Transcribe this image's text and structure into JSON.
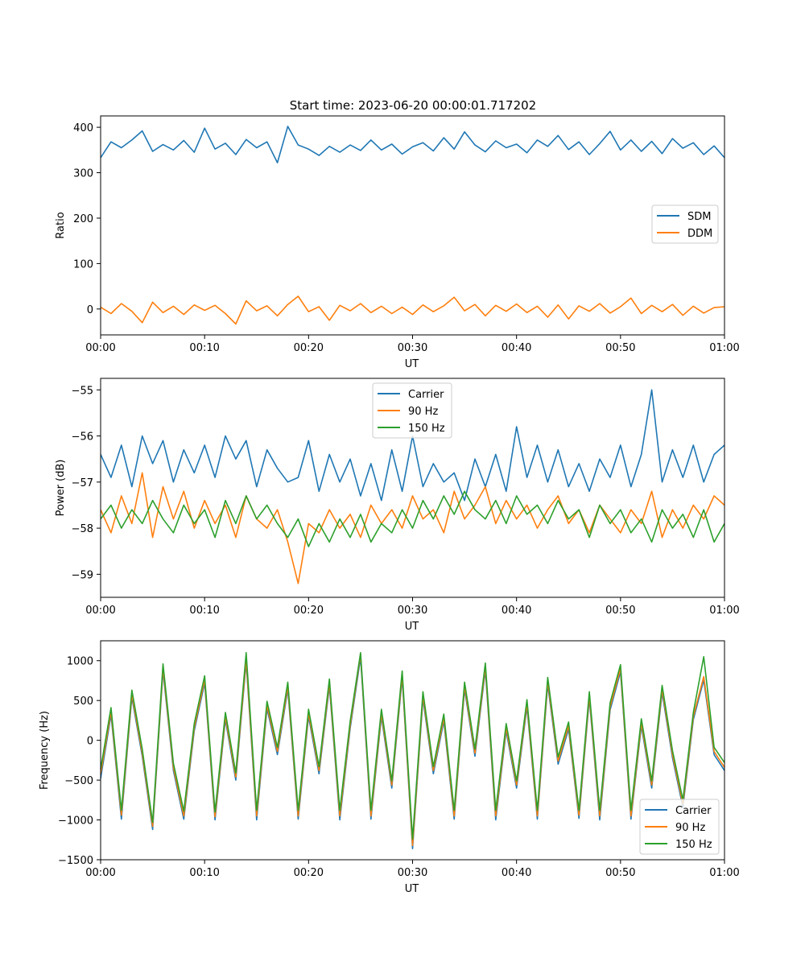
{
  "figure": {
    "title": "Start time: 2023-06-20 00:00:01.717202"
  },
  "colors": {
    "carrier": "#1f77b4",
    "hz90": "#ff7f0e",
    "hz150": "#2ca02c"
  },
  "chart_data": [
    {
      "type": "line",
      "title": "Start time: 2023-06-20 00:00:01.717202",
      "xlabel": "UT",
      "ylabel": "Ratio",
      "xlim": [
        0,
        60
      ],
      "ylim": [
        -57,
        425
      ],
      "x_ticks": [
        "00:00",
        "00:10",
        "00:20",
        "00:30",
        "00:40",
        "00:50",
        "01:00"
      ],
      "y_ticks": [
        0,
        100,
        200,
        300,
        400
      ],
      "grid": false,
      "legend_position": "center-right",
      "series": [
        {
          "name": "SDM",
          "color": "#1f77b4",
          "x": [
            0,
            1,
            2,
            3,
            4,
            5,
            6,
            7,
            8,
            9,
            10,
            11,
            12,
            13,
            14,
            15,
            16,
            17,
            18,
            19,
            20,
            21,
            22,
            23,
            24,
            25,
            26,
            27,
            28,
            29,
            30,
            31,
            32,
            33,
            34,
            35,
            36,
            37,
            38,
            39,
            40,
            41,
            42,
            43,
            44,
            45,
            46,
            47,
            48,
            49,
            50,
            51,
            52,
            53,
            54,
            55,
            56,
            57,
            58,
            59,
            60
          ],
          "y": [
            333,
            368,
            355,
            372,
            392,
            347,
            362,
            350,
            371,
            345,
            398,
            352,
            365,
            340,
            373,
            355,
            368,
            322,
            402,
            361,
            352,
            338,
            358,
            345,
            361,
            349,
            372,
            350,
            363,
            341,
            357,
            366,
            348,
            377,
            352,
            390,
            361,
            346,
            370,
            355,
            363,
            344,
            372,
            358,
            382,
            351,
            368,
            340,
            364,
            391,
            350,
            372,
            347,
            369,
            342,
            375,
            354,
            366,
            340,
            359,
            333
          ]
        },
        {
          "name": "DDM",
          "color": "#ff7f0e",
          "x": [
            0,
            1,
            2,
            3,
            4,
            5,
            6,
            7,
            8,
            9,
            10,
            11,
            12,
            13,
            14,
            15,
            16,
            17,
            18,
            19,
            20,
            21,
            22,
            23,
            24,
            25,
            26,
            27,
            28,
            29,
            30,
            31,
            32,
            33,
            34,
            35,
            36,
            37,
            38,
            39,
            40,
            41,
            42,
            43,
            44,
            45,
            46,
            47,
            48,
            49,
            50,
            51,
            52,
            53,
            54,
            55,
            56,
            57,
            58,
            59,
            60
          ],
          "y": [
            4,
            -10,
            12,
            -5,
            -30,
            15,
            -8,
            6,
            -12,
            9,
            -3,
            8,
            -10,
            -33,
            18,
            -4,
            7,
            -15,
            10,
            28,
            -6,
            5,
            -25,
            8,
            -4,
            12,
            -8,
            6,
            -10,
            4,
            -12,
            9,
            -6,
            7,
            26,
            -4,
            10,
            -15,
            8,
            -5,
            11,
            -8,
            6,
            -18,
            9,
            -22,
            7,
            -5,
            12,
            -9,
            5,
            24,
            -10,
            8,
            -6,
            10,
            -14,
            6,
            -9,
            3,
            5
          ]
        }
      ]
    },
    {
      "type": "line",
      "xlabel": "UT",
      "ylabel": "Power (dB)",
      "xlim": [
        0,
        60
      ],
      "ylim": [
        -59.5,
        -54.75
      ],
      "x_ticks": [
        "00:00",
        "00:10",
        "00:20",
        "00:30",
        "00:40",
        "00:50",
        "01:00"
      ],
      "y_ticks": [
        -55,
        -56,
        -57,
        -58,
        -59
      ],
      "grid": false,
      "legend_position": "top-center",
      "series": [
        {
          "name": "Carrier",
          "color": "#1f77b4",
          "x": [
            0,
            1,
            2,
            3,
            4,
            5,
            6,
            7,
            8,
            9,
            10,
            11,
            12,
            13,
            14,
            15,
            16,
            17,
            18,
            19,
            20,
            21,
            22,
            23,
            24,
            25,
            26,
            27,
            28,
            29,
            30,
            31,
            32,
            33,
            34,
            35,
            36,
            37,
            38,
            39,
            40,
            41,
            42,
            43,
            44,
            45,
            46,
            47,
            48,
            49,
            50,
            51,
            52,
            53,
            54,
            55,
            56,
            57,
            58,
            59,
            60
          ],
          "y": [
            -56.4,
            -56.9,
            -56.2,
            -57.1,
            -56.0,
            -56.6,
            -56.1,
            -57.0,
            -56.3,
            -56.8,
            -56.2,
            -56.9,
            -56.0,
            -56.5,
            -56.1,
            -57.1,
            -56.3,
            -56.7,
            -57.0,
            -56.9,
            -56.1,
            -57.2,
            -56.4,
            -57.0,
            -56.5,
            -57.3,
            -56.6,
            -57.4,
            -56.3,
            -57.2,
            -56.0,
            -57.1,
            -56.6,
            -57.0,
            -56.8,
            -57.4,
            -56.5,
            -57.1,
            -56.4,
            -57.2,
            -55.8,
            -56.9,
            -56.2,
            -57.0,
            -56.3,
            -57.1,
            -56.6,
            -57.2,
            -56.5,
            -56.9,
            -56.2,
            -57.1,
            -56.4,
            -55.0,
            -57.0,
            -56.3,
            -56.9,
            -56.2,
            -57.0,
            -56.4,
            -56.2
          ]
        },
        {
          "name": "90 Hz",
          "color": "#ff7f0e",
          "x": [
            0,
            1,
            2,
            3,
            4,
            5,
            6,
            7,
            8,
            9,
            10,
            11,
            12,
            13,
            14,
            15,
            16,
            17,
            18,
            19,
            20,
            21,
            22,
            23,
            24,
            25,
            26,
            27,
            28,
            29,
            30,
            31,
            32,
            33,
            34,
            35,
            36,
            37,
            38,
            39,
            40,
            41,
            42,
            43,
            44,
            45,
            46,
            47,
            48,
            49,
            50,
            51,
            52,
            53,
            54,
            55,
            56,
            57,
            58,
            59,
            60
          ],
          "y": [
            -57.6,
            -58.1,
            -57.3,
            -57.9,
            -56.8,
            -58.2,
            -57.1,
            -57.8,
            -57.2,
            -58.0,
            -57.4,
            -57.9,
            -57.5,
            -58.2,
            -57.3,
            -57.8,
            -58.0,
            -57.6,
            -58.3,
            -59.2,
            -57.9,
            -58.1,
            -57.6,
            -58.0,
            -57.7,
            -58.2,
            -57.5,
            -57.9,
            -57.6,
            -58.0,
            -57.3,
            -57.8,
            -57.6,
            -58.1,
            -57.2,
            -57.8,
            -57.5,
            -57.1,
            -57.9,
            -57.4,
            -57.8,
            -57.5,
            -58.0,
            -57.6,
            -57.3,
            -57.9,
            -57.6,
            -58.1,
            -57.5,
            -57.8,
            -58.1,
            -57.6,
            -57.9,
            -57.2,
            -58.2,
            -57.6,
            -58.0,
            -57.5,
            -57.8,
            -57.3,
            -57.5
          ]
        },
        {
          "name": "150 Hz",
          "color": "#2ca02c",
          "x": [
            0,
            1,
            2,
            3,
            4,
            5,
            6,
            7,
            8,
            9,
            10,
            11,
            12,
            13,
            14,
            15,
            16,
            17,
            18,
            19,
            20,
            21,
            22,
            23,
            24,
            25,
            26,
            27,
            28,
            29,
            30,
            31,
            32,
            33,
            34,
            35,
            36,
            37,
            38,
            39,
            40,
            41,
            42,
            43,
            44,
            45,
            46,
            47,
            48,
            49,
            50,
            51,
            52,
            53,
            54,
            55,
            56,
            57,
            58,
            59,
            60
          ],
          "y": [
            -57.8,
            -57.5,
            -58.0,
            -57.6,
            -57.9,
            -57.4,
            -57.8,
            -58.1,
            -57.5,
            -57.9,
            -57.6,
            -58.2,
            -57.4,
            -57.9,
            -57.3,
            -57.8,
            -57.5,
            -57.9,
            -58.2,
            -57.8,
            -58.4,
            -57.9,
            -58.3,
            -57.8,
            -58.2,
            -57.7,
            -58.3,
            -57.9,
            -58.1,
            -57.6,
            -58.0,
            -57.4,
            -57.8,
            -57.3,
            -57.7,
            -57.2,
            -57.6,
            -57.8,
            -57.4,
            -57.9,
            -57.3,
            -57.7,
            -57.5,
            -57.9,
            -57.4,
            -57.8,
            -57.6,
            -58.2,
            -57.5,
            -57.9,
            -57.6,
            -58.1,
            -57.8,
            -58.3,
            -57.6,
            -58.0,
            -57.7,
            -58.2,
            -57.6,
            -58.3,
            -57.9
          ]
        }
      ]
    },
    {
      "type": "line",
      "xlabel": "UT",
      "ylabel": "Frequency (Hz)",
      "xlim": [
        0,
        60
      ],
      "ylim": [
        -1500,
        1250
      ],
      "x_ticks": [
        "00:00",
        "00:10",
        "00:20",
        "00:30",
        "00:40",
        "00:50",
        "01:00"
      ],
      "y_ticks": [
        1000,
        500,
        0,
        -500,
        -1000,
        -1500
      ],
      "grid": false,
      "legend_position": "lower-right",
      "series": [
        {
          "name": "Carrier",
          "color": "#1f77b4",
          "x": [
            0,
            1,
            2,
            3,
            4,
            5,
            6,
            7,
            8,
            9,
            10,
            11,
            12,
            13,
            14,
            15,
            16,
            17,
            18,
            19,
            20,
            21,
            22,
            23,
            24,
            25,
            26,
            27,
            28,
            29,
            30,
            31,
            32,
            33,
            34,
            35,
            36,
            37,
            38,
            39,
            40,
            41,
            42,
            43,
            44,
            45,
            46,
            47,
            48,
            49,
            50,
            51,
            52,
            53,
            54,
            55,
            56,
            57,
            58,
            59,
            60
          ],
          "y": [
            -480,
            320,
            -990,
            540,
            -200,
            -1120,
            870,
            -380,
            -990,
            120,
            720,
            -1000,
            260,
            -500,
            980,
            -1000,
            400,
            -180,
            640,
            -990,
            300,
            -420,
            680,
            -1000,
            150,
            1040,
            -990,
            300,
            -600,
            780,
            -1360,
            520,
            -420,
            240,
            -990,
            640,
            -200,
            880,
            -1000,
            120,
            -600,
            420,
            -990,
            700,
            -300,
            140,
            -980,
            520,
            -1000,
            380,
            860,
            -990,
            180,
            -600,
            600,
            -220,
            -840,
            260,
            760,
            -180,
            -380
          ]
        },
        {
          "name": "90 Hz",
          "color": "#ff7f0e",
          "x": [
            0,
            1,
            2,
            3,
            4,
            5,
            6,
            7,
            8,
            9,
            10,
            11,
            12,
            13,
            14,
            15,
            16,
            17,
            18,
            19,
            20,
            21,
            22,
            23,
            24,
            25,
            26,
            27,
            28,
            29,
            30,
            31,
            32,
            33,
            34,
            35,
            36,
            37,
            38,
            39,
            40,
            41,
            42,
            43,
            44,
            45,
            46,
            47,
            48,
            49,
            50,
            51,
            52,
            53,
            54,
            55,
            56,
            57,
            58,
            59,
            60
          ],
          "y": [
            -420,
            360,
            -940,
            580,
            -160,
            -1080,
            910,
            -340,
            -950,
            160,
            760,
            -960,
            300,
            -460,
            1020,
            -950,
            440,
            -140,
            680,
            -950,
            340,
            -380,
            720,
            -950,
            190,
            1080,
            -950,
            340,
            -560,
            820,
            -1320,
            560,
            -380,
            280,
            -950,
            680,
            -160,
            920,
            -950,
            160,
            -560,
            460,
            -950,
            740,
            -260,
            180,
            -940,
            560,
            -950,
            420,
            900,
            -950,
            220,
            -560,
            640,
            -180,
            -800,
            300,
            800,
            -140,
            -340
          ]
        },
        {
          "name": "150 Hz",
          "color": "#2ca02c",
          "x": [
            0,
            1,
            2,
            3,
            4,
            5,
            6,
            7,
            8,
            9,
            10,
            11,
            12,
            13,
            14,
            15,
            16,
            17,
            18,
            19,
            20,
            21,
            22,
            23,
            24,
            25,
            26,
            27,
            28,
            29,
            30,
            31,
            32,
            33,
            34,
            35,
            36,
            37,
            38,
            39,
            40,
            41,
            42,
            43,
            44,
            45,
            46,
            47,
            48,
            49,
            50,
            51,
            52,
            53,
            54,
            55,
            56,
            57,
            58,
            59,
            60
          ],
          "y": [
            -360,
            410,
            -880,
            630,
            -110,
            -1030,
            960,
            -290,
            -890,
            210,
            810,
            -900,
            350,
            -410,
            1100,
            -880,
            490,
            -90,
            730,
            -880,
            390,
            -330,
            770,
            -880,
            240,
            1100,
            -880,
            390,
            -510,
            870,
            -1240,
            610,
            -330,
            330,
            -880,
            730,
            -110,
            970,
            -880,
            210,
            -510,
            510,
            -880,
            790,
            -210,
            230,
            -880,
            610,
            -880,
            470,
            950,
            -880,
            270,
            -510,
            690,
            -130,
            -750,
            350,
            1050,
            -90,
            -280
          ]
        }
      ]
    }
  ]
}
